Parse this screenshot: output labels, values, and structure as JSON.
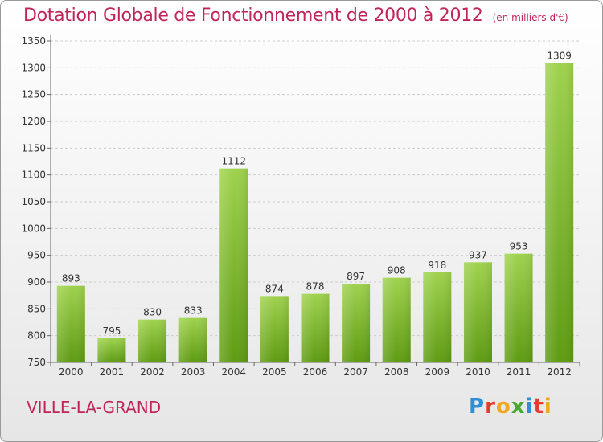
{
  "header": {
    "title": "Dotation Globale de Fonctionnement de 2000 à 2012",
    "subtitle": "(en milliers d'€)"
  },
  "footer": {
    "commune": "VILLE-LA-GRAND",
    "logo_letters": [
      "P",
      "r",
      "o",
      "x",
      "i",
      "t",
      "i"
    ],
    "logo_colors": [
      "#2e8fd6",
      "#e33b2c",
      "#f2a81c",
      "#4aa832",
      "#2e8fd6",
      "#e33b2c",
      "#f2a81c"
    ]
  },
  "colors": {
    "title": "#c0245a",
    "bar_top": "#9fd24e",
    "bar_bottom": "#5e9b12",
    "grid": "#cccccc"
  },
  "chart_data": {
    "type": "bar",
    "title": "Dotation Globale de Fonctionnement de 2000 à 2012",
    "subtitle": "(en milliers d'€)",
    "categories": [
      "2000",
      "2001",
      "2002",
      "2003",
      "2004",
      "2005",
      "2006",
      "2007",
      "2008",
      "2009",
      "2010",
      "2011",
      "2012"
    ],
    "values": [
      893,
      795,
      830,
      833,
      1112,
      874,
      878,
      897,
      908,
      918,
      937,
      953,
      1309
    ],
    "ylim": [
      750,
      1350
    ],
    "yticks": [
      750,
      800,
      850,
      900,
      950,
      1000,
      1050,
      1100,
      1150,
      1200,
      1250,
      1300,
      1350
    ],
    "grid": true,
    "data_labels": true
  }
}
